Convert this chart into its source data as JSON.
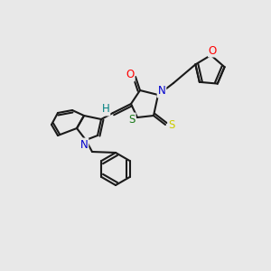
{
  "bg_color": "#e8e8e8",
  "bond_color": "#1a1a1a",
  "atom_colors": {
    "O": "#ff0000",
    "N": "#0000cc",
    "S_thioxo": "#cccc00",
    "S_ring": "#1a7a1a",
    "H": "#008080",
    "C": "#1a1a1a"
  },
  "font_size": 8.5,
  "figsize": [
    3.0,
    3.0
  ],
  "dpi": 100
}
